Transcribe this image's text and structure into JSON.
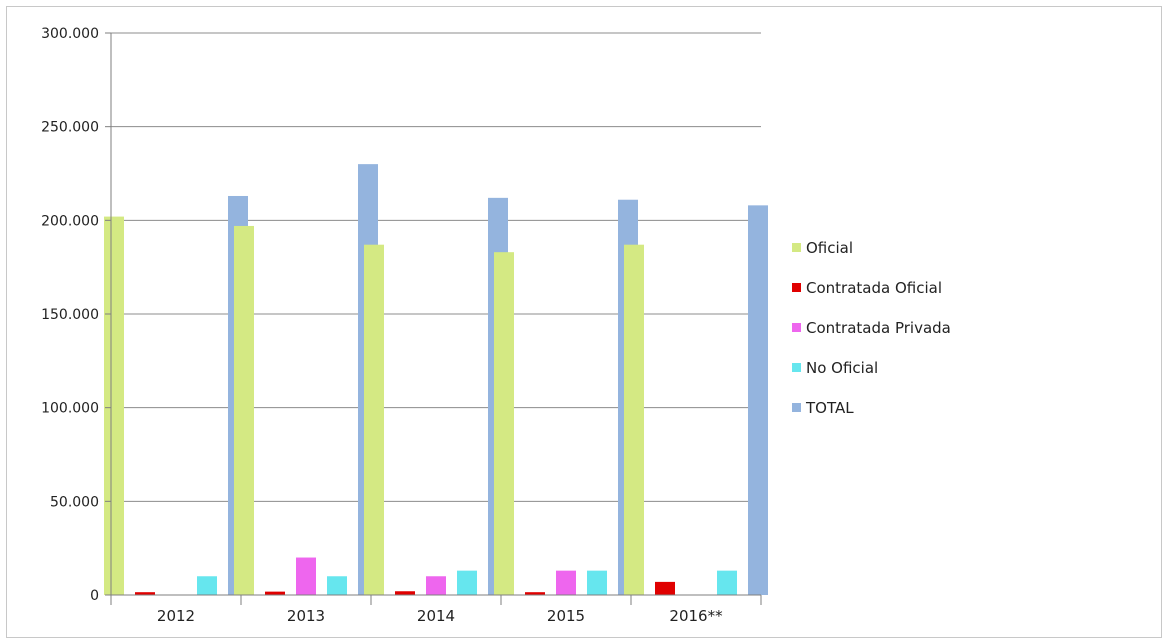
{
  "chart_data": {
    "type": "bar",
    "categories": [
      "2012",
      "2013",
      "2014",
      "2015",
      "2016**"
    ],
    "series": [
      {
        "name": "Oficial",
        "color": "#d4e983",
        "values": [
          202000,
          197000,
          187000,
          183000,
          187000
        ]
      },
      {
        "name": "Contratada Oficial",
        "color": "#e00000",
        "values": [
          1500,
          1800,
          2000,
          1500,
          7000
        ]
      },
      {
        "name": "Contratada Privada",
        "color": "#ee66ee",
        "values": [
          0,
          20000,
          10000,
          13000,
          0
        ]
      },
      {
        "name": "No Oficial",
        "color": "#66e6ee",
        "values": [
          10000,
          10000,
          13000,
          13000,
          13000
        ]
      },
      {
        "name": "TOTAL",
        "color": "#94b4de",
        "values": [
          213000,
          230000,
          212000,
          211000,
          208000
        ]
      }
    ],
    "yticks": [
      "0",
      "50.000",
      "100.000",
      "150.000",
      "200.000",
      "250.000",
      "300.000"
    ],
    "ylim": [
      0,
      300000
    ],
    "grid": true,
    "legend_position": "right",
    "title": "",
    "xlabel": "",
    "ylabel": ""
  }
}
